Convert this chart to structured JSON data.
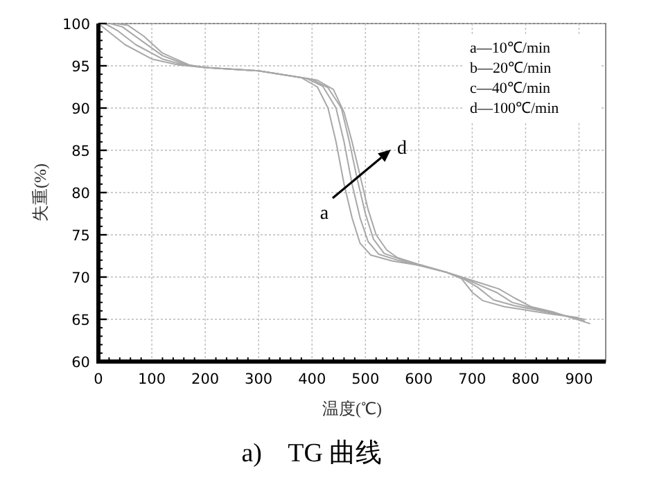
{
  "chart_data": {
    "type": "line",
    "title": "a)    TG 曲线",
    "xlabel": "温度(℃)",
    "ylabel": "失重(%)",
    "xlim": [
      0,
      950
    ],
    "ylim": [
      60,
      100
    ],
    "xticks": [
      0,
      100,
      200,
      300,
      400,
      500,
      600,
      700,
      800,
      900
    ],
    "yticks": [
      60,
      65,
      70,
      75,
      80,
      85,
      90,
      95,
      100
    ],
    "grid": true,
    "line_style": "solid",
    "annotations": [
      "a—10℃/min",
      "b—20℃/min",
      "c—40℃/min",
      "d—100℃/min",
      "a",
      "d"
    ],
    "series": [
      {
        "color": "#a8a8a8",
        "x": [
          0,
          20,
          50,
          100,
          150,
          200,
          300,
          380,
          410,
          430,
          445,
          460,
          475,
          490,
          510,
          550,
          600,
          650,
          680,
          700,
          720,
          760,
          800,
          850,
          898
        ],
        "values": [
          100,
          99,
          97.5,
          95.8,
          95.1,
          94.8,
          94.4,
          93.6,
          92.5,
          90,
          86,
          81,
          77,
          74,
          72.6,
          71.9,
          71.4,
          70.6,
          69.8,
          68.2,
          67.2,
          66.5,
          66.1,
          65.6,
          65.2
        ]
      },
      {
        "color": "#a8a8a8",
        "x": [
          12,
          35,
          70,
          120,
          160,
          200,
          300,
          390,
          420,
          445,
          460,
          475,
          490,
          505,
          525,
          560,
          600,
          650,
          680,
          710,
          740,
          780,
          820,
          860,
          910
        ],
        "values": [
          100,
          99.2,
          97.5,
          95.8,
          95.1,
          94.8,
          94.4,
          93.5,
          92.6,
          90,
          86,
          81,
          77,
          74.2,
          72.7,
          72,
          71.4,
          70.6,
          69.9,
          68.8,
          67.3,
          66.6,
          66.1,
          65.6,
          65
        ]
      },
      {
        "color": "#a8a8a8",
        "x": [
          22,
          45,
          80,
          120,
          165,
          200,
          300,
          400,
          430,
          455,
          470,
          485,
          500,
          515,
          535,
          570,
          600,
          650,
          680,
          715,
          745,
          775,
          810,
          850,
          910
        ],
        "values": [
          100,
          99.6,
          98,
          96.2,
          95.1,
          94.8,
          94.4,
          93.4,
          92.4,
          90,
          86,
          81.5,
          77.5,
          74.5,
          72.8,
          72,
          71.5,
          70.6,
          70,
          69,
          68.2,
          67,
          66.4,
          65.8,
          64.8
        ]
      },
      {
        "color": "#a8a8a8",
        "x": [
          32,
          55,
          85,
          120,
          170,
          200,
          300,
          410,
          440,
          460,
          475,
          490,
          505,
          520,
          540,
          560,
          600,
          650,
          680,
          720,
          750,
          780,
          810,
          850,
          920
        ],
        "values": [
          100,
          99.8,
          98.5,
          96.5,
          95.1,
          94.8,
          94.4,
          93.3,
          92.2,
          89.5,
          86,
          82,
          78,
          75,
          73.2,
          72.3,
          71.5,
          70.6,
          70,
          69.2,
          68.6,
          67.5,
          66.5,
          65.9,
          64.5
        ]
      }
    ]
  }
}
